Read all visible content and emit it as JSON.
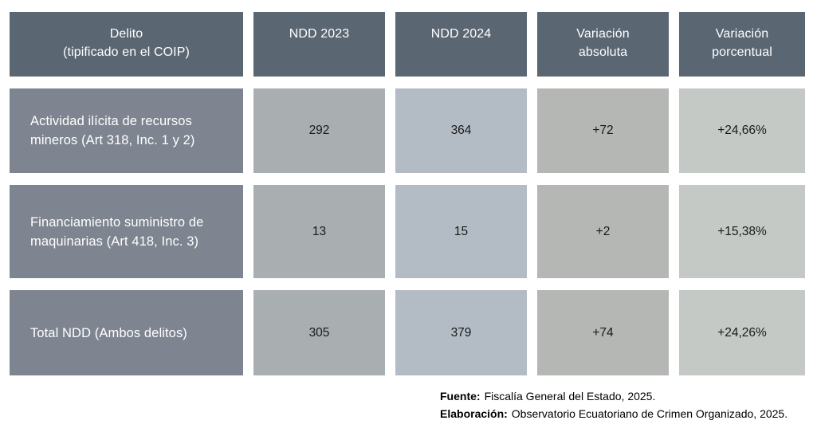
{
  "table": {
    "headers": {
      "delito": "Delito\n(tipificado en el COIP)",
      "ndd_2023": "NDD 2023",
      "ndd_2024": "NDD 2024",
      "var_abs": "Variación\nabsoluta",
      "var_pct": "Variación\nporcentual"
    },
    "rows": [
      {
        "delito": "Actividad ilícita de recursos mineros (Art 318, Inc. 1 y 2)",
        "ndd_2023": "292",
        "ndd_2024": "364",
        "var_abs": "+72",
        "var_pct": "+24,66%"
      },
      {
        "delito": "Financiamiento suministro de maquinarias (Art 418, Inc. 3)",
        "ndd_2023": "13",
        "ndd_2024": "15",
        "var_abs": "+2",
        "var_pct": "+15,38%"
      },
      {
        "delito": "Total NDD (Ambos delitos)",
        "ndd_2023": "305",
        "ndd_2024": "379",
        "var_abs": "+74",
        "var_pct": "+24,26%"
      }
    ]
  },
  "footer": {
    "fuente_label": "Fuente:",
    "fuente_text": "Fiscalía General del Estado, 2025.",
    "elaboracion_label": "Elaboración:",
    "elaboracion_text": "Observatorio Ecuatoriano de Crimen Organizado, 2025."
  },
  "colors": {
    "header_bg": "#5b6673",
    "row_label_bg": "#7e8490",
    "col_ndd2023_bg": "#a9aeb0",
    "col_ndd2024_bg": "#b3bcc4",
    "col_varabs_bg": "#b5b7b4",
    "col_varpct_bg": "#c4c9c6",
    "header_text": "#ffffff",
    "cell_text": "#1a1a1a"
  }
}
